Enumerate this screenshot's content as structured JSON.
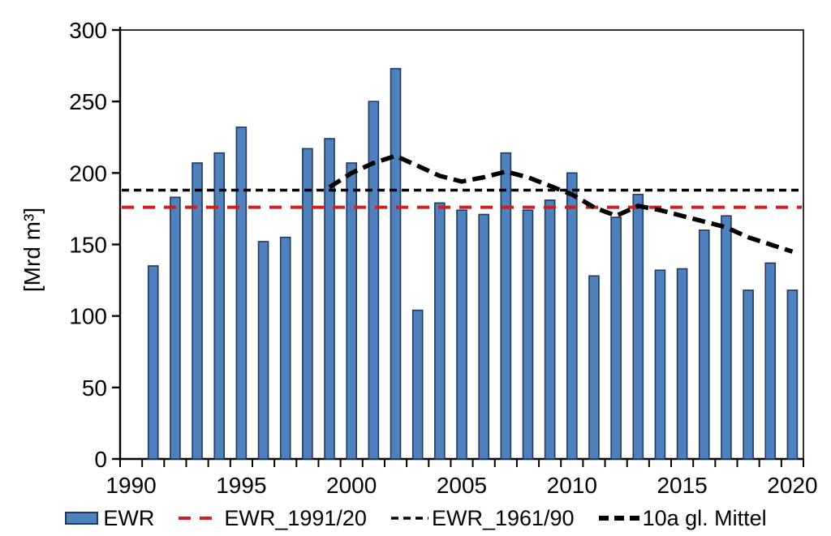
{
  "chart_data": {
    "type": "bar",
    "title": "",
    "xlabel": "",
    "ylabel": "[Mrd m³]",
    "ylim": [
      0,
      300
    ],
    "y_ticks": [
      0,
      50,
      100,
      150,
      200,
      250,
      300
    ],
    "x_range": [
      1990,
      2020
    ],
    "x_tick_labels": [
      "1990",
      "1995",
      "2000",
      "2005",
      "2010",
      "2015",
      "2020"
    ],
    "x_tick_years": [
      1990,
      1995,
      2000,
      2005,
      2010,
      2015,
      2020
    ],
    "grid": false,
    "legend_position": "bottom",
    "axis_color": "#000000",
    "series": [
      {
        "name": "EWR",
        "type": "bar",
        "fill_color": "#4f81bd",
        "border_color": "#1f3864",
        "x": [
          1991,
          1992,
          1993,
          1994,
          1995,
          1996,
          1997,
          1998,
          1999,
          2000,
          2001,
          2002,
          2003,
          2004,
          2005,
          2006,
          2007,
          2008,
          2009,
          2010,
          2011,
          2012,
          2013,
          2014,
          2015,
          2016,
          2017,
          2018,
          2019,
          2020
        ],
        "values": [
          135,
          183,
          207,
          214,
          232,
          152,
          155,
          217,
          224,
          207,
          250,
          273,
          104,
          179,
          174,
          171,
          214,
          174,
          181,
          200,
          128,
          169,
          185,
          132,
          133,
          160,
          170,
          118,
          137,
          118
        ]
      },
      {
        "name": "EWR_1991/20",
        "type": "hline",
        "color": "#cc2020",
        "value": 176,
        "dash_style": "long-dash"
      },
      {
        "name": "EWR_1961/90",
        "type": "hline",
        "color": "#000000",
        "value": 188,
        "dash_style": "short-dash"
      },
      {
        "name": "10a gl. Mittel",
        "type": "line",
        "color": "#000000",
        "dash_style": "thick-dash",
        "x": [
          1999,
          2000,
          2001,
          2002,
          2003,
          2004,
          2005,
          2006,
          2007,
          2008,
          2009,
          2010,
          2011,
          2012,
          2013,
          2014,
          2015,
          2016,
          2017,
          2018,
          2019,
          2020
        ],
        "values": [
          190,
          200,
          207,
          212,
          205,
          198,
          194,
          197,
          201,
          197,
          191,
          185,
          176,
          170,
          177,
          174,
          170,
          166,
          162,
          155,
          150,
          145
        ]
      }
    ]
  }
}
